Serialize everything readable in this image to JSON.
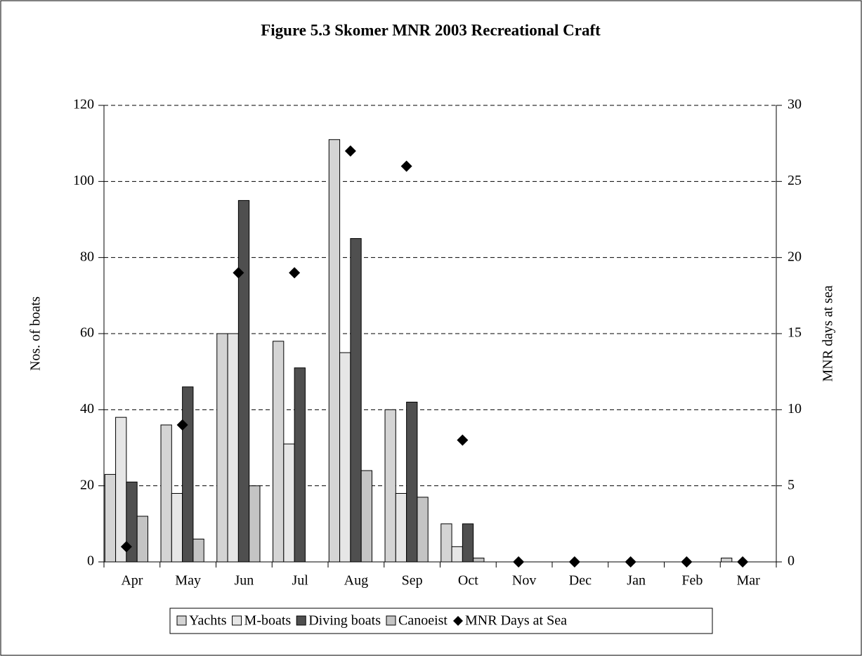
{
  "chart_data": {
    "type": "bar",
    "title": "Figure 5.3  Skomer MNR 2003 Recreational Craft",
    "y_label": "Nos. of boats",
    "y2_label": "MNR days at sea",
    "categories": [
      "Apr",
      "May",
      "Jun",
      "Jul",
      "Aug",
      "Sep",
      "Oct",
      "Nov",
      "Dec",
      "Jan",
      "Feb",
      "Mar"
    ],
    "series": [
      {
        "name": "Yachts",
        "color": "#d4d4d4",
        "values": [
          23,
          36,
          60,
          58,
          111,
          40,
          10,
          0,
          0,
          0,
          0,
          1
        ]
      },
      {
        "name": "M-boats",
        "color": "#e6e6e6",
        "values": [
          38,
          18,
          60,
          31,
          55,
          18,
          4,
          0,
          0,
          0,
          0,
          0
        ]
      },
      {
        "name": "Diving boats",
        "color": "#4f4f4f",
        "values": [
          21,
          46,
          95,
          51,
          85,
          42,
          10,
          0,
          0,
          0,
          0,
          0
        ]
      },
      {
        "name": "Canoeist",
        "color": "#c4c4c4",
        "values": [
          12,
          6,
          20,
          0,
          24,
          17,
          1,
          0,
          0,
          0,
          0,
          0
        ]
      },
      {
        "name": "MNR Days at Sea",
        "color": "#000000",
        "axis": "y2",
        "marker": "diamond",
        "values": [
          1,
          9,
          19,
          19,
          27,
          26,
          8,
          0,
          0,
          0,
          0,
          0
        ]
      }
    ],
    "ylim": [
      0,
      120
    ],
    "yticks": [
      0,
      20,
      40,
      60,
      80,
      100,
      120
    ],
    "y2lim": [
      0,
      30
    ],
    "y2ticks": [
      0,
      5,
      10,
      15,
      20,
      25,
      30
    ],
    "grid": true,
    "legend": "bottom"
  }
}
